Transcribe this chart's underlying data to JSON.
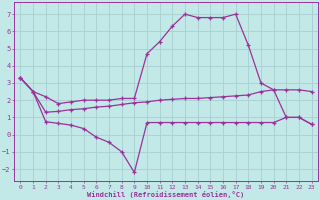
{
  "background_color": "#c2e8e8",
  "grid_color": "#a8d0d0",
  "line_color": "#993399",
  "xlabel": "Windchill (Refroidissement éolien,°C)",
  "xlim": [
    -0.5,
    23.5
  ],
  "ylim": [
    -2.7,
    7.7
  ],
  "yticks": [
    -2,
    -1,
    0,
    1,
    2,
    3,
    4,
    5,
    6,
    7
  ],
  "xticks": [
    0,
    1,
    2,
    3,
    4,
    5,
    6,
    7,
    8,
    9,
    10,
    11,
    12,
    13,
    14,
    15,
    16,
    17,
    18,
    19,
    20,
    21,
    22,
    23
  ],
  "line1_x": [
    0,
    1,
    2,
    3,
    4,
    5,
    6,
    7,
    8,
    9,
    10,
    11,
    12,
    13,
    14,
    15,
    16,
    17,
    18,
    19,
    20,
    21,
    22,
    23
  ],
  "line1_y": [
    3.3,
    2.5,
    0.75,
    0.65,
    0.55,
    0.35,
    -0.15,
    -0.45,
    -1.0,
    -2.2,
    0.7,
    0.7,
    0.7,
    0.7,
    0.7,
    0.7,
    0.7,
    0.7,
    0.7,
    0.7,
    0.7,
    1.0,
    1.0,
    0.6
  ],
  "line2_x": [
    0,
    1,
    2,
    3,
    4,
    5,
    6,
    7,
    8,
    9,
    10,
    11,
    12,
    13,
    14,
    15,
    16,
    17,
    18,
    19,
    20,
    21,
    22,
    23
  ],
  "line2_y": [
    3.3,
    2.5,
    1.3,
    1.35,
    1.45,
    1.5,
    1.6,
    1.65,
    1.75,
    1.85,
    1.9,
    2.0,
    2.05,
    2.1,
    2.1,
    2.15,
    2.2,
    2.25,
    2.3,
    2.5,
    2.6,
    2.6,
    2.6,
    2.5
  ],
  "line3_x": [
    0,
    1,
    2,
    3,
    4,
    5,
    6,
    7,
    8,
    9,
    10,
    11,
    12,
    13,
    14,
    15,
    16,
    17,
    18,
    19,
    20,
    21,
    22,
    23
  ],
  "line3_y": [
    3.3,
    2.5,
    2.2,
    1.8,
    1.9,
    2.0,
    2.0,
    2.0,
    2.1,
    2.1,
    4.7,
    5.4,
    6.3,
    7.0,
    6.8,
    6.8,
    6.8,
    7.0,
    5.2,
    3.0,
    2.6,
    1.0,
    1.0,
    0.6
  ]
}
